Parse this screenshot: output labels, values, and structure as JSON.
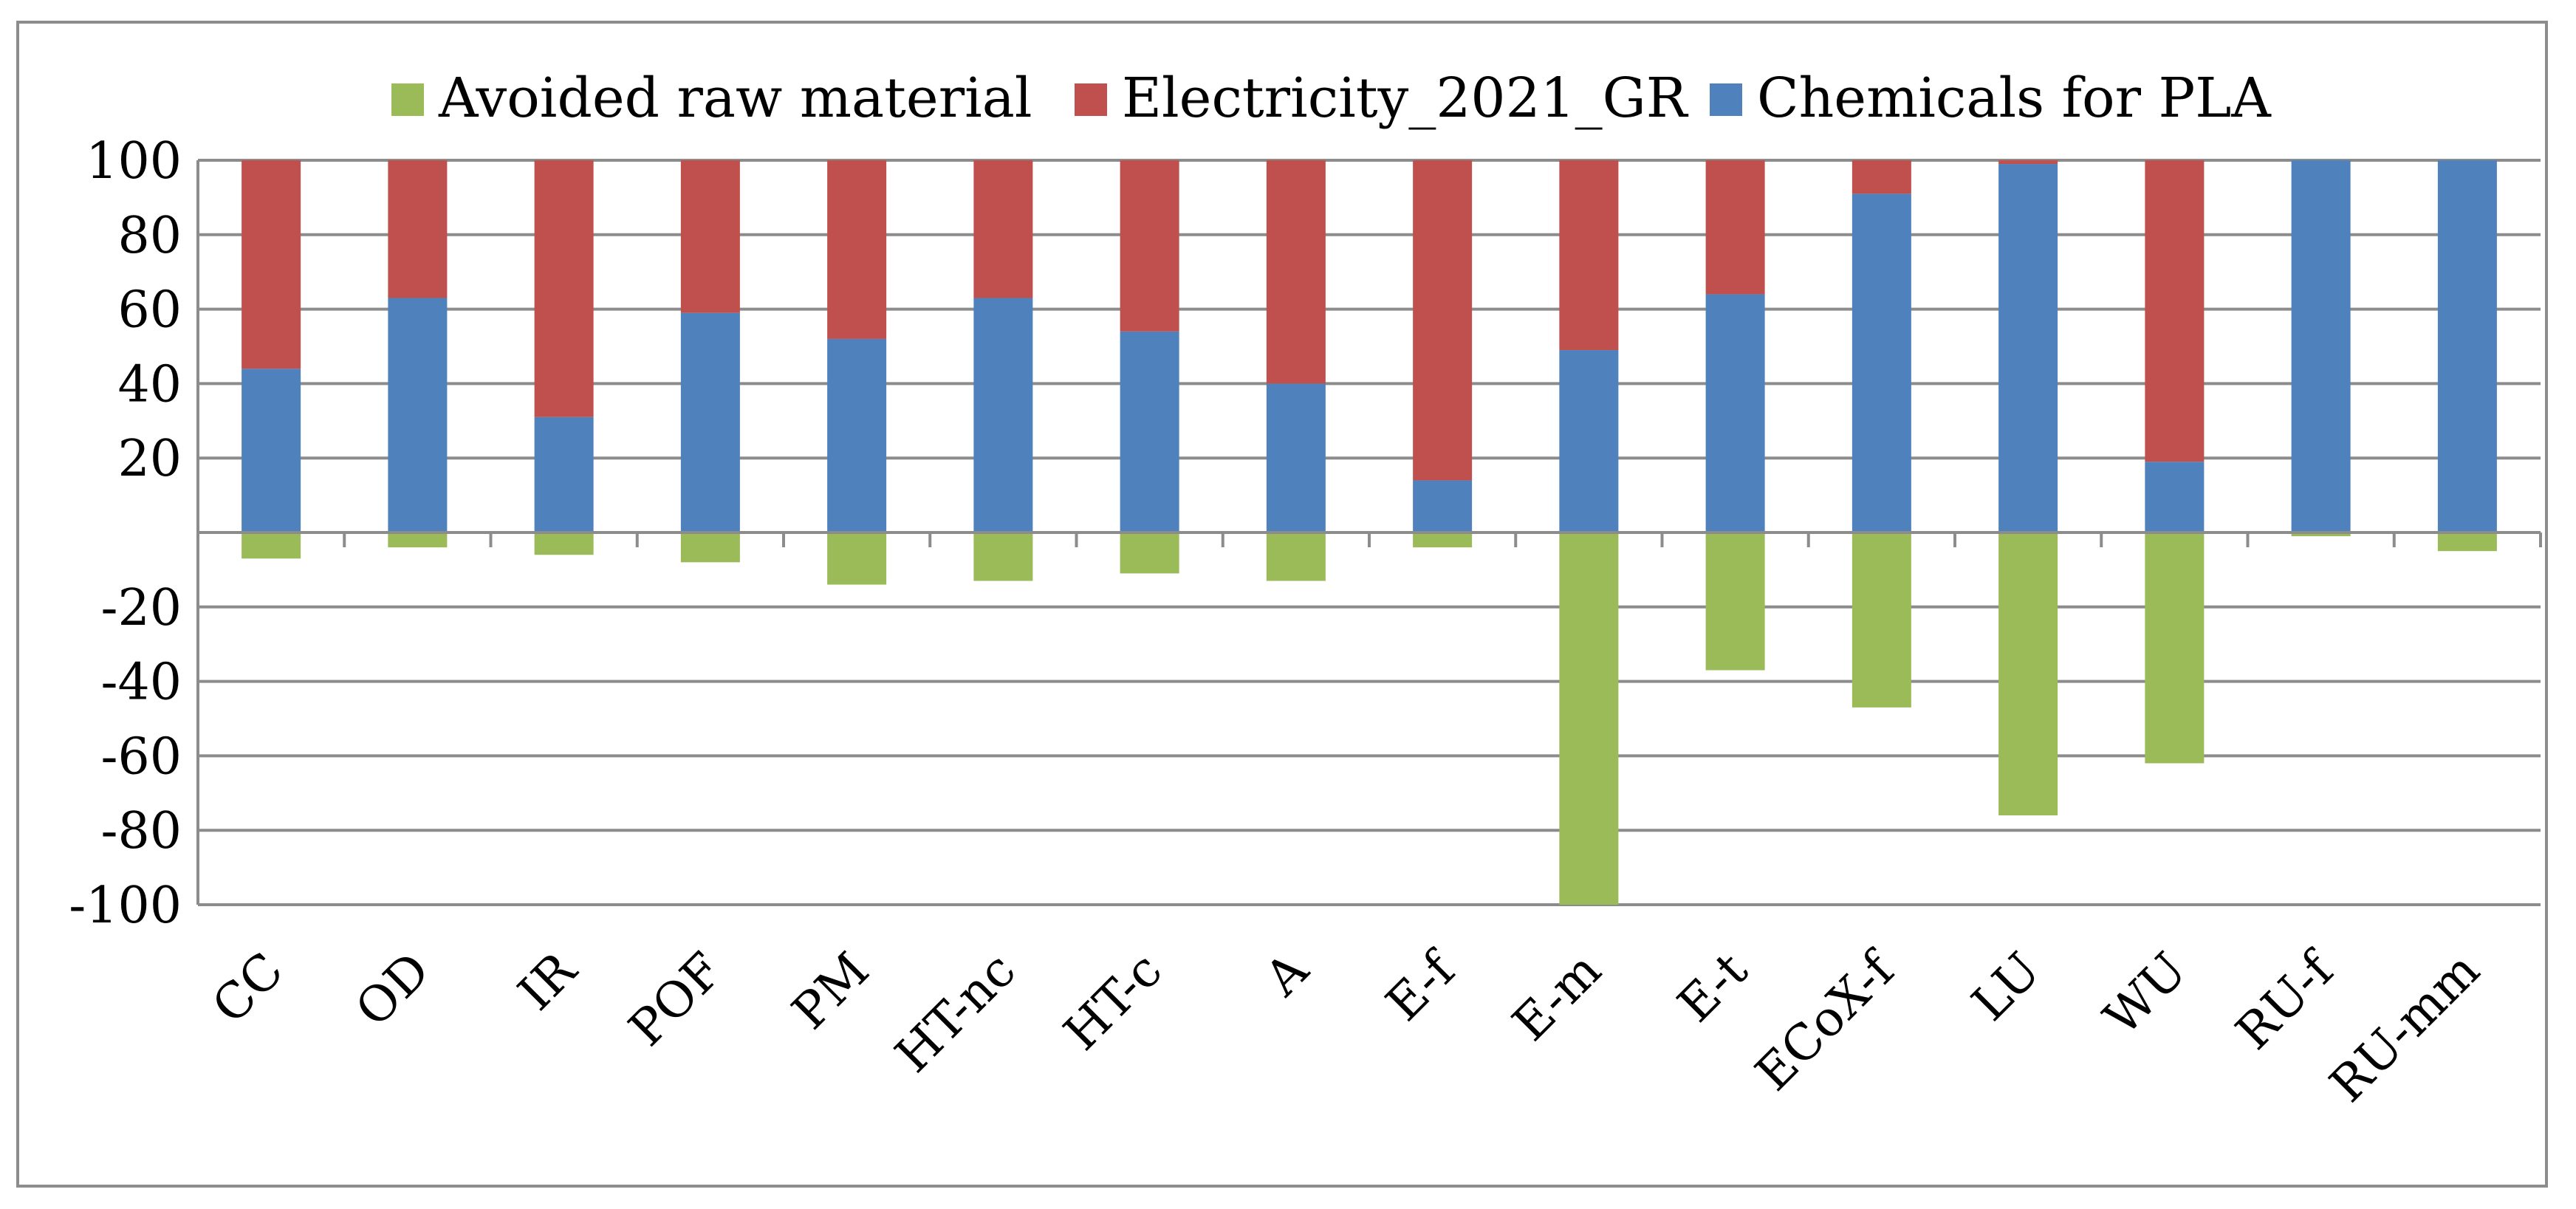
{
  "chart_data": {
    "type": "bar",
    "stacked": true,
    "categories": [
      "CC",
      "OD",
      "IR",
      "POF",
      "PM",
      "HT-nc",
      "HT-c",
      "A",
      "E-f",
      "E-m",
      "E-t",
      "ECoX-f",
      "LU",
      "WU",
      "RU-f",
      "RU-mm"
    ],
    "series": [
      {
        "name": "Avoided raw material",
        "color": "#9bbb59",
        "values": [
          -7,
          -4,
          -6,
          -8,
          -14,
          -13,
          -11,
          -13,
          -4,
          -100,
          -37,
          -47,
          -76,
          -62,
          -1,
          -5
        ]
      },
      {
        "name": "Electricity_2021_GR",
        "color": "#c0504d",
        "values": [
          56,
          37,
          69,
          41,
          48,
          37,
          46,
          60,
          86,
          51,
          36,
          9,
          1,
          81,
          0,
          0
        ]
      },
      {
        "name": "Chemicals for PLA",
        "color": "#4f81bd",
        "values": [
          44,
          63,
          31,
          59,
          52,
          63,
          54,
          40,
          14,
          49,
          64,
          91,
          99,
          19,
          100,
          100
        ]
      }
    ],
    "legend_order": [
      "Avoided raw material",
      "Electricity_2021_GR",
      "Chemicals for PLA"
    ],
    "legend_position": "top",
    "ylim": [
      -100,
      100
    ],
    "yticks": [
      100,
      80,
      60,
      40,
      20,
      -20,
      -40,
      -60,
      -80,
      -100
    ],
    "grid": true,
    "title": "",
    "xlabel": "",
    "ylabel": ""
  }
}
